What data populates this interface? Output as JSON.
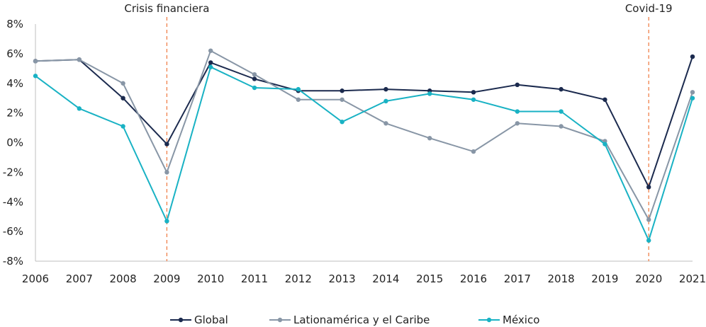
{
  "chart_data": {
    "type": "line",
    "title": "",
    "xlabel": "",
    "ylabel": "",
    "x": [
      "2006",
      "2007",
      "2008",
      "2009",
      "2010",
      "2011",
      "2012",
      "2013",
      "2014",
      "2015",
      "2016",
      "2017",
      "2018",
      "2019",
      "2020",
      "2021"
    ],
    "y_unit": "%",
    "ylim": [
      -8,
      8
    ],
    "y_ticks": [
      "8%",
      "6%",
      "4%",
      "2%",
      "0%",
      "-2%",
      "-4%",
      "-6%",
      "-8%"
    ],
    "grid": false,
    "legend_position": "bottom",
    "series": [
      {
        "name": "Global",
        "color": "#1b2a4e",
        "values": [
          5.5,
          5.6,
          3.0,
          -0.1,
          5.4,
          4.3,
          3.5,
          3.5,
          3.6,
          3.5,
          3.4,
          3.9,
          3.6,
          2.9,
          -3.0,
          5.8
        ]
      },
      {
        "name": "Lationamérica y el Caribe",
        "color": "#8896a6",
        "values": [
          5.5,
          5.6,
          4.0,
          -2.0,
          6.2,
          4.6,
          2.9,
          2.9,
          1.3,
          0.3,
          -0.6,
          1.3,
          1.1,
          0.1,
          -5.2,
          3.4
        ]
      },
      {
        "name": "México",
        "color": "#19b2c4",
        "values": [
          4.5,
          2.3,
          1.1,
          -5.3,
          5.1,
          3.7,
          3.6,
          1.4,
          2.8,
          3.3,
          2.9,
          2.1,
          2.1,
          -0.1,
          -6.6,
          3.0
        ]
      }
    ],
    "annotations": [
      {
        "x": "2009",
        "label": "Crisis financiera",
        "color": "#f0804a"
      },
      {
        "x": "2020",
        "label": "Covid-19",
        "color": "#f0804a"
      }
    ]
  }
}
